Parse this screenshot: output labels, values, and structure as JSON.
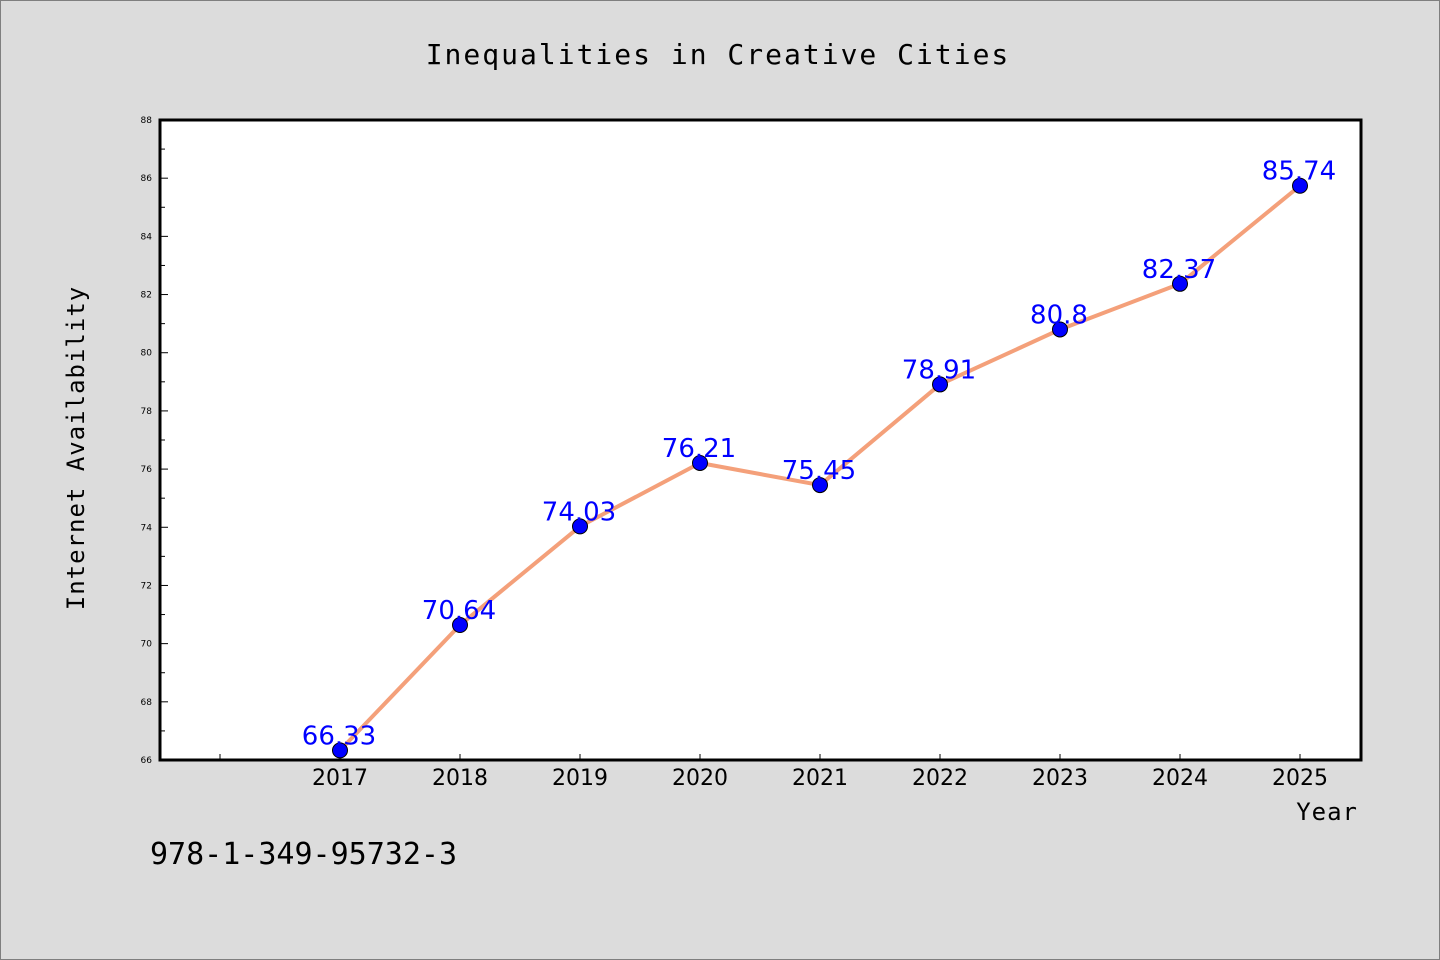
{
  "chart_data": {
    "type": "line",
    "title": "Inequalities in Creative Cities",
    "xlabel": "Year",
    "ylabel": "Internet Availability",
    "categories": [
      "2017",
      "2018",
      "2019",
      "2020",
      "2021",
      "2022",
      "2023",
      "2024",
      "2025"
    ],
    "series": [
      {
        "values": [
          66.33,
          70.64,
          74.03,
          76.21,
          75.45,
          78.91,
          80.8,
          82.37,
          85.74
        ],
        "labels": [
          "66.33",
          "70.64",
          "74.03",
          "76.21",
          "75.45",
          "78.91",
          "80.8",
          "82.37",
          "85.74"
        ],
        "line_color": "#f4a07a",
        "marker_color": "#0000ff"
      }
    ],
    "ylim": [
      66,
      88
    ],
    "yticks": [
      "66",
      "68",
      "70",
      "72",
      "74",
      "76",
      "78",
      "80",
      "82",
      "84",
      "86",
      "88"
    ],
    "grid": false,
    "legend": "none"
  },
  "footnote": "978-1-349-95732-3"
}
